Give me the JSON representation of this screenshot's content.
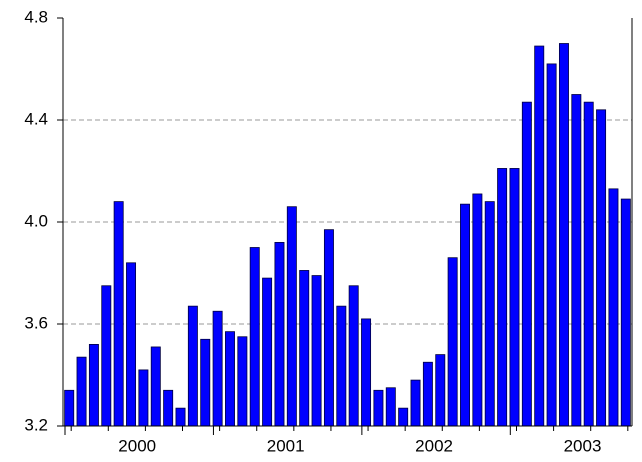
{
  "chart_data": {
    "type": "bar",
    "categories": [
      null,
      null,
      null,
      null,
      null,
      null,
      null,
      null,
      null,
      null,
      null,
      null,
      null,
      null,
      null,
      null,
      null,
      null,
      null,
      null,
      null,
      null,
      null,
      null,
      null,
      null,
      null,
      null,
      null,
      null,
      null,
      null,
      null,
      null,
      null,
      null,
      null,
      null,
      null,
      null,
      null,
      null,
      null,
      null,
      null,
      null
    ],
    "x_groups": [
      "2000",
      "2001",
      "2002",
      "2003"
    ],
    "values": [
      3.34,
      3.47,
      3.52,
      3.75,
      4.08,
      3.84,
      3.42,
      3.51,
      3.34,
      3.27,
      3.67,
      3.54,
      3.65,
      3.57,
      3.55,
      3.9,
      3.78,
      3.92,
      4.06,
      3.81,
      3.79,
      3.97,
      3.67,
      3.75,
      3.62,
      3.34,
      3.35,
      3.27,
      3.38,
      3.45,
      3.48,
      3.86,
      4.07,
      4.11,
      4.08,
      4.21,
      4.21,
      4.47,
      4.69,
      4.62,
      4.7,
      4.5,
      4.47,
      4.44,
      4.13,
      4.09
    ],
    "color": "#0000ff",
    "ylim": [
      3.2,
      4.8
    ],
    "yticks": [
      3.2,
      3.6,
      {
        "value": 4,
        "label": "4.0"
      },
      4.4,
      4.8
    ],
    "grid": true
  }
}
